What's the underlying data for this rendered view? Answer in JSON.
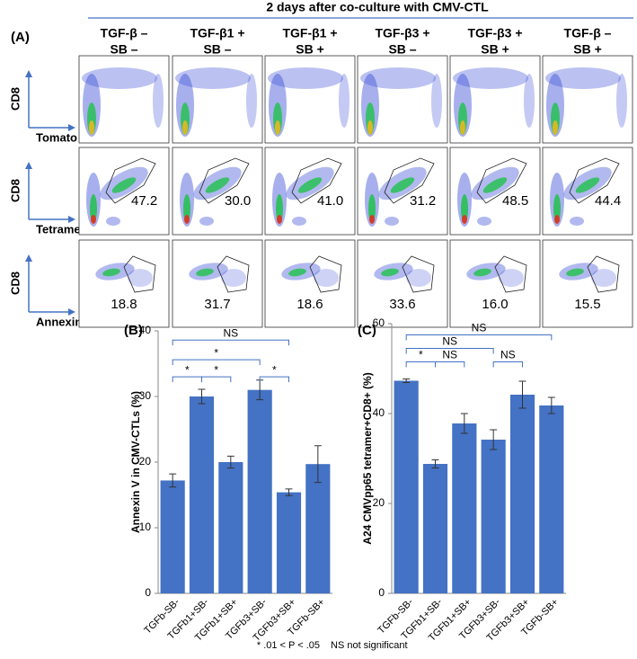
{
  "panel_a": {
    "label": "(A)",
    "header": "2 days after co-culture with CMV-CTL",
    "columns": [
      [
        "TGF-β –",
        "SB –"
      ],
      [
        "TGF-β1 +",
        "SB –"
      ],
      [
        "TGF-β1 +",
        "SB +"
      ],
      [
        "TGF-β3 +",
        "SB –"
      ],
      [
        "TGF-β3 +",
        "SB +"
      ],
      [
        "TGF-β –",
        "SB +"
      ]
    ],
    "rows": [
      {
        "y_label": "CD8",
        "x_label": "Tomato"
      },
      {
        "y_label": "CD8",
        "x_label": "Tetramer",
        "values": [
          "47.2",
          "30.0",
          "41.0",
          "31.2",
          "48.5",
          "44.4"
        ]
      },
      {
        "y_label": "CD8",
        "x_label": "Annexin V",
        "values": [
          "18.8",
          "31.7",
          "18.6",
          "33.6",
          "16.0",
          "15.5"
        ]
      }
    ]
  },
  "chart_data": [
    {
      "type": "bar",
      "label": "(B)",
      "y_label": "Annexin V in CMV-CTLs (%)",
      "categories": [
        "TGFb-SB-",
        "TGFb1+SB-",
        "TGFb1+SB+",
        "TGFb3+SB-",
        "TGFb3+SB+",
        "TGFb-SB+"
      ],
      "values": [
        17.2,
        30,
        20,
        31,
        15.4,
        19.7
      ],
      "errors": [
        1.0,
        1.1,
        0.9,
        1.5,
        0.5,
        2.8
      ],
      "color": "#4472c4",
      "ylim": [
        0,
        40
      ],
      "yticks": [
        0,
        10,
        20,
        30,
        40
      ],
      "annotations": [
        "NS",
        "*",
        "*",
        "*",
        "*"
      ]
    },
    {
      "type": "bar",
      "label": "(C)",
      "y_label": "A24 CMVpp65 tetramer+CD8+ (%)",
      "categories": [
        "TGFb-SB-",
        "TGFb1+SB-",
        "TGFb1+SB+",
        "TGFb3+SB-",
        "TGFb3+SB+",
        "TGFb-SB+"
      ],
      "values": [
        47.3,
        28.8,
        37.8,
        34.2,
        44.2,
        41.8
      ],
      "errors": [
        0.4,
        0.9,
        2.2,
        2.2,
        3.0,
        1.8
      ],
      "color": "#4472c4",
      "ylim": [
        0,
        60
      ],
      "yticks": [
        0,
        20,
        40,
        60
      ],
      "annotations": [
        "NS",
        "NS",
        "*",
        "NS",
        "NS"
      ]
    }
  ],
  "footnote": [
    "* .01 < P < .05",
    "NS not significant"
  ]
}
